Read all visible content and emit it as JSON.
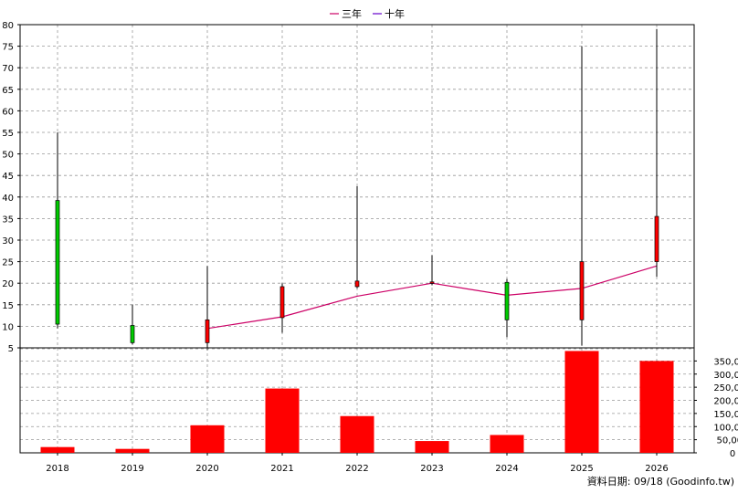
{
  "legend": {
    "three_year_label": "三年",
    "ten_year_label": "十年"
  },
  "source_note": "資料日期: 09/18  (Goodinfo.tw)",
  "colors": {
    "up_candle": "#ff0000",
    "down_candle": "#00cc00",
    "three_year_line": "#cc0066",
    "ten_year_line": "#6600cc",
    "volume_bar": "#ff0000",
    "grid": "#999999"
  },
  "chart_data": [
    {
      "type": "candlestick",
      "categories": [
        "2018",
        "2019",
        "2020",
        "2021",
        "2022",
        "2023",
        "2024",
        "2025",
        "2026"
      ],
      "ylim": [
        5,
        80
      ],
      "yticks": [
        5,
        10,
        15,
        20,
        25,
        30,
        35,
        40,
        45,
        50,
        55,
        60,
        65,
        70,
        75,
        80
      ],
      "grid": true,
      "legend_position": "top-center",
      "candles": [
        {
          "x": "2018",
          "open": 39.2,
          "close": 10.5,
          "high": 55,
          "low": 9.5
        },
        {
          "x": "2019",
          "open": 10.2,
          "close": 6.2,
          "high": 15,
          "low": 5.8
        },
        {
          "x": "2020",
          "open": 6.2,
          "close": 11.5,
          "high": 24,
          "low": 4.5
        },
        {
          "x": "2021",
          "open": 12,
          "close": 19.2,
          "high": 20,
          "low": 8.5
        },
        {
          "x": "2022",
          "open": 19.2,
          "close": 20.5,
          "high": 42.5,
          "low": 18.8
        },
        {
          "x": "2023",
          "open": 20,
          "close": 20.3,
          "high": 26.5,
          "low": 19.5
        },
        {
          "x": "2024",
          "open": 20.2,
          "close": 11.5,
          "high": 21,
          "low": 7.5
        },
        {
          "x": "2025",
          "open": 11.5,
          "close": 25,
          "high": 75,
          "low": 5.5
        },
        {
          "x": "2026",
          "open": 25,
          "close": 35.5,
          "high": 79,
          "low": 21.5
        }
      ],
      "series": [
        {
          "name": "三年",
          "x": [
            "2020",
            "2021",
            "2022",
            "2023",
            "2024",
            "2025",
            "2026"
          ],
          "values": [
            9.5,
            12.2,
            17,
            20,
            17.2,
            18.8,
            24
          ]
        }
      ]
    },
    {
      "type": "bar",
      "categories": [
        "2018",
        "2019",
        "2020",
        "2021",
        "2022",
        "2023",
        "2024",
        "2025",
        "2026"
      ],
      "values": [
        22000,
        15000,
        105000,
        245000,
        140000,
        45000,
        68000,
        388000,
        350000
      ],
      "ylim": [
        0,
        400000
      ],
      "yticks": [
        0,
        50000,
        100000,
        150000,
        200000,
        250000,
        300000,
        350000
      ],
      "ytick_labels": [
        "0",
        "50,000",
        "100,000",
        "150,000",
        "200,000",
        "250,000",
        "300,000",
        "350,000"
      ],
      "grid": true
    }
  ]
}
